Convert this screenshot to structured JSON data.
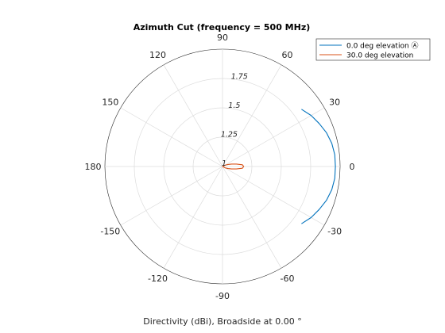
{
  "chart_data": {
    "type": "line",
    "projection": "polar",
    "title": "Azimuth Cut (frequency = 500 MHz)",
    "xlabel": "Directivity (dBi), Broadside at 0.00 °",
    "angle_unit": "deg",
    "angle_ticks": [
      "90",
      "60",
      "30",
      "0",
      "-30",
      "-60",
      "-90",
      "-120",
      "-150",
      "180",
      "150",
      "120"
    ],
    "radial_ticks": [
      "1",
      "1.25",
      "1.5",
      "1.75"
    ],
    "rlim": [
      1,
      2
    ],
    "grid": true,
    "legend_placement": "top-right",
    "series": [
      {
        "name": "0.0 deg elevation Ⓐ",
        "color": "#0072BD",
        "angles": [
          -36,
          -30,
          -24,
          -18,
          -12,
          -6,
          0,
          6,
          12,
          18,
          24,
          30,
          36
        ],
        "values": [
          1.83,
          1.87,
          1.9,
          1.93,
          1.95,
          1.96,
          1.96,
          1.96,
          1.95,
          1.93,
          1.9,
          1.87,
          1.83
        ]
      },
      {
        "name": "30.0 deg elevation",
        "color": "#D95319",
        "angles": [
          -30,
          -20,
          -15,
          -10,
          -5,
          0,
          5,
          10,
          15,
          20,
          30,
          20,
          10,
          0,
          -10,
          -20,
          -30
        ],
        "values": [
          1.02,
          1.05,
          1.08,
          1.12,
          1.17,
          1.18,
          1.17,
          1.12,
          1.08,
          1.05,
          1.02,
          1.01,
          1.005,
          1.0,
          1.005,
          1.01,
          1.02
        ]
      }
    ]
  }
}
